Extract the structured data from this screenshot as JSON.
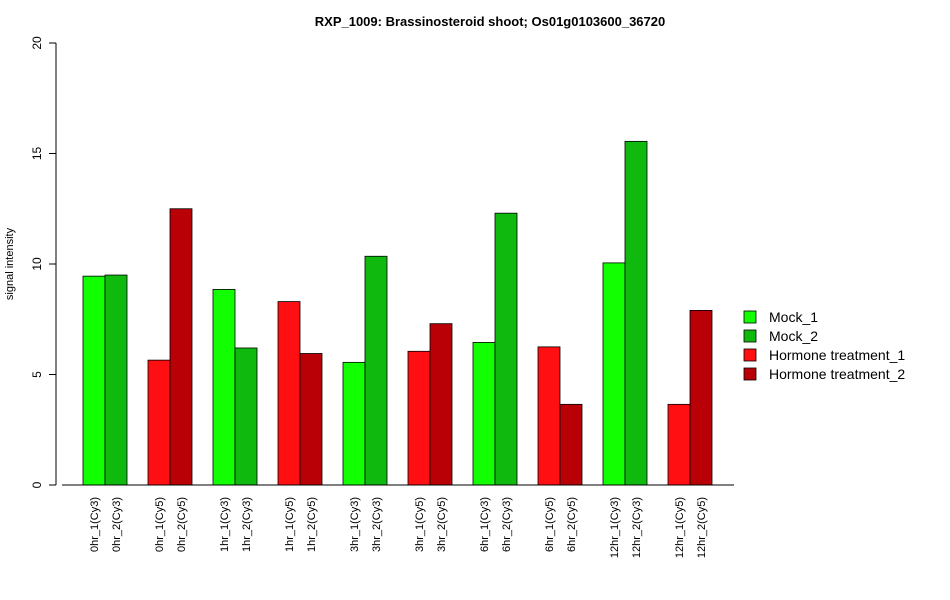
{
  "chart_data": {
    "type": "bar",
    "title": "RXP_1009: Brassinosteroid shoot; Os01g0103600_36720",
    "ylabel": "signal intensity",
    "xlabel": "",
    "ylim": [
      0,
      20
    ],
    "yticks": [
      "0",
      "5",
      "10",
      "15",
      "20"
    ],
    "grid": false,
    "legend_position": "right",
    "bars": [
      {
        "label": "0hr_1(Cy3)",
        "value": 9.45,
        "series": "Mock_1"
      },
      {
        "label": "0hr_2(Cy3)",
        "value": 9.5,
        "series": "Mock_2"
      },
      {
        "label": "0hr_1(Cy5)",
        "value": 5.65,
        "series": "Hormone treatment_1"
      },
      {
        "label": "0hr_2(Cy5)",
        "value": 12.5,
        "series": "Hormone treatment_2"
      },
      {
        "label": "1hr_1(Cy3)",
        "value": 8.85,
        "series": "Mock_1"
      },
      {
        "label": "1hr_2(Cy3)",
        "value": 6.2,
        "series": "Mock_2"
      },
      {
        "label": "1hr_1(Cy5)",
        "value": 8.3,
        "series": "Hormone treatment_1"
      },
      {
        "label": "1hr_2(Cy5)",
        "value": 5.95,
        "series": "Hormone treatment_2"
      },
      {
        "label": "3hr_1(Cy3)",
        "value": 5.55,
        "series": "Mock_1"
      },
      {
        "label": "3hr_2(Cy3)",
        "value": 10.35,
        "series": "Mock_2"
      },
      {
        "label": "3hr_1(Cy5)",
        "value": 6.05,
        "series": "Hormone treatment_1"
      },
      {
        "label": "3hr_2(Cy5)",
        "value": 7.3,
        "series": "Hormone treatment_2"
      },
      {
        "label": "6hr_1(Cy3)",
        "value": 6.45,
        "series": "Mock_1"
      },
      {
        "label": "6hr_2(Cy3)",
        "value": 12.3,
        "series": "Mock_2"
      },
      {
        "label": "6hr_1(Cy5)",
        "value": 6.25,
        "series": "Hormone treatment_1"
      },
      {
        "label": "6hr_2(Cy5)",
        "value": 3.65,
        "series": "Hormone treatment_2"
      },
      {
        "label": "12hr_1(Cy3)",
        "value": 10.05,
        "series": "Mock_1"
      },
      {
        "label": "12hr_2(Cy3)",
        "value": 15.55,
        "series": "Mock_2"
      },
      {
        "label": "12hr_1(Cy5)",
        "value": 3.65,
        "series": "Hormone treatment_1"
      },
      {
        "label": "12hr_2(Cy5)",
        "value": 7.9,
        "series": "Hormone treatment_2"
      }
    ],
    "series": [
      {
        "name": "Mock_1",
        "color": "#11ff00"
      },
      {
        "name": "Mock_2",
        "color": "#0fb90d"
      },
      {
        "name": "Hormone treatment_1",
        "color": "#ff0f12"
      },
      {
        "name": "Hormone treatment_2",
        "color": "#b90006"
      }
    ]
  }
}
